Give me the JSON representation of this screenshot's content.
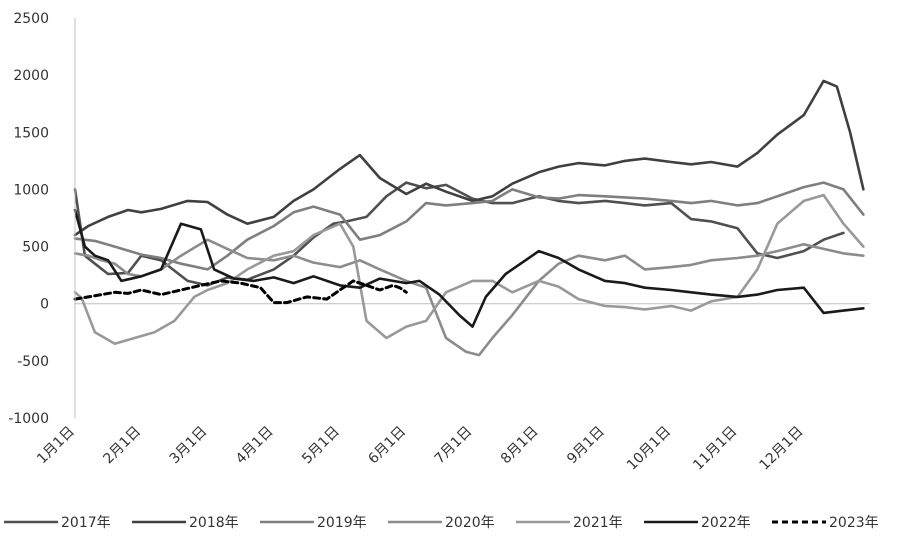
{
  "chart_data": {
    "type": "line",
    "title": "",
    "xlabel": "",
    "ylabel": "",
    "ylim": [
      -1000,
      2500
    ],
    "yticks": [
      "2500",
      "2000",
      "1500",
      "1000",
      "500",
      "0",
      "-500",
      "-1000"
    ],
    "ytick_values": [
      2500,
      2000,
      1500,
      1000,
      500,
      0,
      -500,
      -1000
    ],
    "xticks": [
      "1月1日",
      "2月1日",
      "3月1日",
      "4月1日",
      "5月1日",
      "6月1日",
      "7月1日",
      "8月1日",
      "9月1日",
      "10月1日",
      "11月1日",
      "12月1日"
    ],
    "xtick_months": [
      1,
      2,
      3,
      4,
      5,
      6,
      7,
      8,
      9,
      10,
      11,
      12
    ],
    "x_unit": "month (1.0 = 1月1日)",
    "grid": false,
    "legend_position": "bottom",
    "series": [
      {
        "name": "2017年",
        "color": "#505050",
        "dash": "solid",
        "x": [
          1.0,
          1.15,
          1.3,
          1.5,
          1.8,
          2.0,
          2.3,
          2.7,
          3.0,
          3.3,
          3.6,
          4.0,
          4.3,
          4.6,
          4.9,
          5.1,
          5.4,
          5.7,
          6.0,
          6.3,
          6.6,
          7.0,
          7.3,
          7.6,
          8.0,
          8.3,
          8.6,
          9.0,
          9.3,
          9.6,
          10.0,
          10.3,
          10.6,
          11.0,
          11.3,
          11.6,
          12.0,
          12.3,
          12.6
        ],
        "y": [
          1000,
          420,
          350,
          260,
          270,
          420,
          380,
          200,
          160,
          230,
          210,
          300,
          420,
          580,
          700,
          720,
          760,
          940,
          1060,
          1010,
          1040,
          920,
          880,
          880,
          940,
          900,
          880,
          900,
          880,
          860,
          880,
          740,
          720,
          660,
          440,
          400,
          460,
          560,
          620
        ]
      },
      {
        "name": "2018年",
        "color": "#404040",
        "dash": "solid",
        "x": [
          1.0,
          1.2,
          1.5,
          1.8,
          2.0,
          2.3,
          2.7,
          3.0,
          3.3,
          3.6,
          4.0,
          4.3,
          4.6,
          5.0,
          5.3,
          5.6,
          6.0,
          6.3,
          6.6,
          7.0,
          7.3,
          7.6,
          8.0,
          8.3,
          8.6,
          9.0,
          9.3,
          9.6,
          10.0,
          10.3,
          10.6,
          11.0,
          11.3,
          11.6,
          12.0,
          12.3,
          12.5,
          12.7,
          12.9
        ],
        "y": [
          600,
          680,
          760,
          820,
          800,
          830,
          900,
          890,
          780,
          700,
          760,
          900,
          1000,
          1180,
          1300,
          1100,
          960,
          1050,
          980,
          900,
          940,
          1050,
          1150,
          1200,
          1230,
          1210,
          1250,
          1270,
          1240,
          1220,
          1240,
          1200,
          1320,
          1480,
          1650,
          1950,
          1900,
          1500,
          1000
        ]
      },
      {
        "name": "2019年",
        "color": "#7f7f7f",
        "dash": "solid",
        "x": [
          1.0,
          1.3,
          1.6,
          2.0,
          2.3,
          2.6,
          3.0,
          3.3,
          3.6,
          4.0,
          4.3,
          4.6,
          5.0,
          5.3,
          5.6,
          6.0,
          6.3,
          6.6,
          7.0,
          7.3,
          7.6,
          8.0,
          8.3,
          8.6,
          9.0,
          9.3,
          9.6,
          10.0,
          10.3,
          10.6,
          11.0,
          11.3,
          11.6,
          12.0,
          12.3,
          12.6,
          12.9
        ],
        "y": [
          570,
          550,
          500,
          430,
          400,
          350,
          300,
          420,
          560,
          680,
          800,
          850,
          780,
          560,
          600,
          720,
          880,
          860,
          880,
          900,
          1000,
          930,
          920,
          950,
          940,
          930,
          920,
          900,
          880,
          900,
          860,
          880,
          940,
          1020,
          1060,
          1000,
          780
        ]
      },
      {
        "name": "2020年",
        "color": "#8c8c8c",
        "dash": "solid",
        "x": [
          1.0,
          1.2,
          1.4,
          1.6,
          1.8,
          2.0,
          2.3,
          2.6,
          3.0,
          3.3,
          3.6,
          4.0,
          4.3,
          4.6,
          5.0,
          5.3,
          5.6,
          6.0,
          6.3,
          6.6,
          6.9,
          7.1,
          7.3,
          7.6,
          8.0,
          8.3,
          8.6,
          9.0,
          9.3,
          9.6,
          10.0,
          10.3,
          10.6,
          11.0,
          11.3,
          11.6,
          12.0,
          12.3,
          12.6,
          12.9
        ],
        "y": [
          440,
          420,
          380,
          350,
          260,
          240,
          300,
          420,
          560,
          480,
          400,
          380,
          420,
          360,
          320,
          380,
          300,
          200,
          140,
          -300,
          -420,
          -450,
          -300,
          -100,
          200,
          350,
          420,
          380,
          420,
          300,
          320,
          340,
          380,
          400,
          420,
          460,
          520,
          480,
          440,
          420
        ]
      },
      {
        "name": "2021年",
        "color": "#999999",
        "dash": "solid",
        "x": [
          1.0,
          1.1,
          1.3,
          1.6,
          1.9,
          2.2,
          2.5,
          2.8,
          3.0,
          3.3,
          3.6,
          4.0,
          4.3,
          4.6,
          5.0,
          5.2,
          5.4,
          5.7,
          6.0,
          6.3,
          6.6,
          7.0,
          7.3,
          7.6,
          8.0,
          8.3,
          8.6,
          9.0,
          9.3,
          9.6,
          10.0,
          10.3,
          10.6,
          11.0,
          11.3,
          11.6,
          12.0,
          12.3,
          12.6,
          12.9
        ],
        "y": [
          100,
          50,
          -250,
          -350,
          -300,
          -250,
          -150,
          60,
          120,
          180,
          300,
          420,
          460,
          600,
          700,
          500,
          -150,
          -300,
          -200,
          -150,
          100,
          200,
          200,
          100,
          200,
          150,
          40,
          -20,
          -30,
          -50,
          -20,
          -60,
          20,
          60,
          300,
          700,
          900,
          950,
          700,
          500
        ]
      },
      {
        "name": "2022年",
        "color": "#1a1a1a",
        "dash": "solid",
        "x": [
          1.0,
          1.15,
          1.3,
          1.5,
          1.7,
          2.0,
          2.3,
          2.6,
          2.9,
          3.1,
          3.4,
          3.7,
          4.0,
          4.3,
          4.6,
          5.0,
          5.3,
          5.6,
          6.0,
          6.2,
          6.5,
          6.8,
          7.0,
          7.2,
          7.5,
          7.8,
          8.0,
          8.3,
          8.6,
          9.0,
          9.3,
          9.6,
          10.0,
          10.3,
          10.6,
          11.0,
          11.3,
          11.6,
          12.0,
          12.3,
          12.6,
          12.9
        ],
        "y": [
          820,
          500,
          420,
          380,
          200,
          240,
          300,
          700,
          650,
          300,
          220,
          200,
          230,
          180,
          240,
          160,
          140,
          220,
          180,
          200,
          80,
          -100,
          -200,
          60,
          260,
          380,
          460,
          400,
          300,
          200,
          180,
          140,
          120,
          100,
          80,
          60,
          80,
          120,
          140,
          -80,
          -60,
          -40
        ]
      },
      {
        "name": "2023年",
        "color": "#000000",
        "dash": "dashed",
        "x": [
          1.0,
          1.2,
          1.4,
          1.6,
          1.8,
          2.0,
          2.3,
          2.6,
          2.9,
          3.2,
          3.5,
          3.8,
          4.0,
          4.2,
          4.5,
          4.8,
          5.0,
          5.2,
          5.4,
          5.6,
          5.8,
          5.9,
          6.0
        ],
        "y": [
          40,
          60,
          80,
          100,
          90,
          120,
          80,
          120,
          160,
          200,
          180,
          140,
          10,
          10,
          60,
          40,
          120,
          200,
          160,
          120,
          160,
          140,
          100
        ]
      }
    ]
  }
}
